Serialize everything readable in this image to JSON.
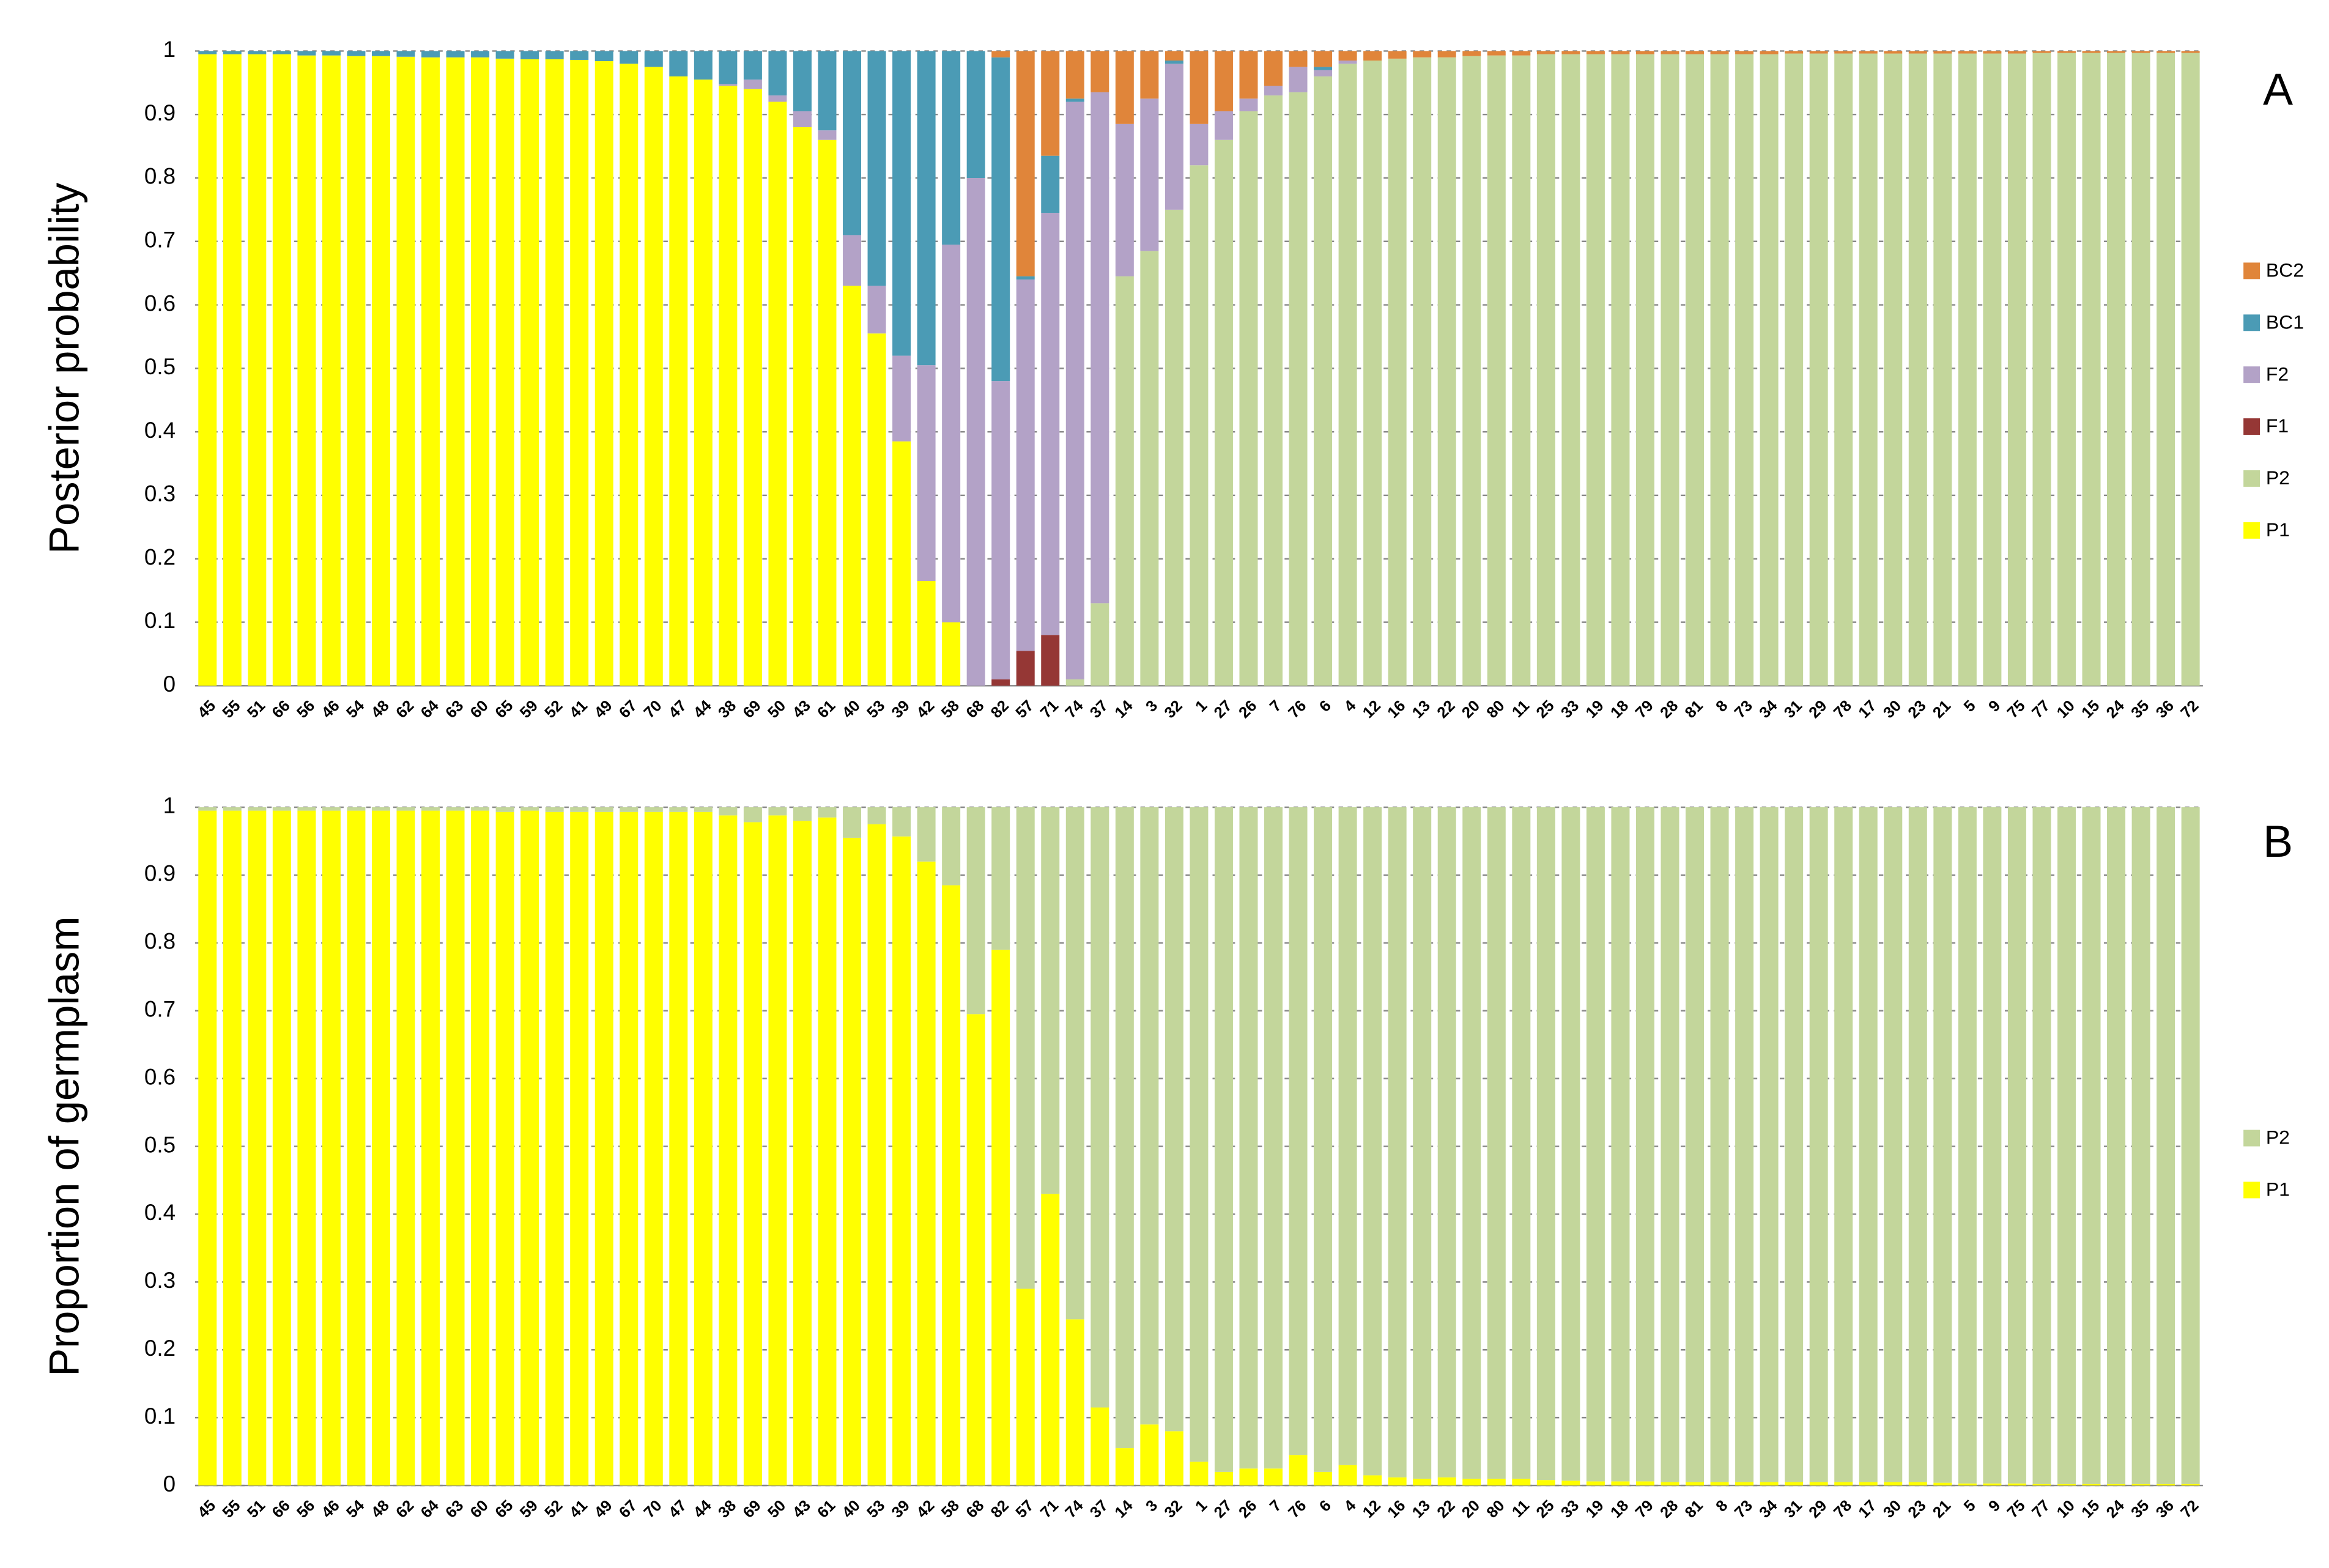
{
  "chart_data": [
    {
      "type": "stacked_bar",
      "ylabel": "Posterior probability",
      "panel_label": "A",
      "categories": [
        "45",
        "55",
        "51",
        "66",
        "56",
        "46",
        "54",
        "48",
        "62",
        "64",
        "63",
        "60",
        "65",
        "59",
        "52",
        "41",
        "49",
        "67",
        "70",
        "47",
        "44",
        "38",
        "69",
        "50",
        "43",
        "61",
        "40",
        "53",
        "39",
        "42",
        "58",
        "68",
        "82",
        "57",
        "71",
        "74",
        "37",
        "14",
        "3",
        "32",
        "1",
        "27",
        "26",
        "7",
        "76",
        "6",
        "4",
        "12",
        "16",
        "13",
        "22",
        "20",
        "80",
        "11",
        "25",
        "33",
        "19",
        "18",
        "79",
        "28",
        "81",
        "8",
        "73",
        "34",
        "31",
        "29",
        "78",
        "17",
        "30",
        "23",
        "21",
        "5",
        "9",
        "75",
        "77",
        "10",
        "15",
        "24",
        "35",
        "36",
        "72"
      ],
      "ylim": [
        0,
        1
      ],
      "yticks": [
        0,
        0.1,
        0.2,
        0.3,
        0.4,
        0.5,
        0.6,
        0.7,
        0.8,
        0.9,
        1
      ],
      "grid": true,
      "series": [
        {
          "name": "P1",
          "color": "#ffff00",
          "values": [
            0.995,
            0.995,
            0.995,
            0.995,
            0.993,
            0.993,
            0.992,
            0.992,
            0.991,
            0.99,
            0.99,
            0.99,
            0.988,
            0.987,
            0.987,
            0.986,
            0.984,
            0.98,
            0.975,
            0.96,
            0.955,
            0.945,
            0.94,
            0.92,
            0.88,
            0.86,
            0.63,
            0.555,
            0.385,
            0.165,
            0.1,
            0,
            0,
            0,
            0,
            0,
            0,
            0,
            0,
            0,
            0,
            0,
            0,
            0,
            0,
            0,
            0,
            0,
            0,
            0,
            0,
            0,
            0,
            0,
            0,
            0,
            0,
            0,
            0,
            0,
            0,
            0,
            0,
            0,
            0,
            0,
            0,
            0,
            0,
            0,
            0,
            0,
            0,
            0,
            0,
            0,
            0,
            0,
            0,
            0,
            0
          ]
        },
        {
          "name": "P2",
          "color": "#c3d69b",
          "values": [
            0,
            0,
            0,
            0,
            0,
            0,
            0,
            0,
            0,
            0,
            0,
            0,
            0,
            0,
            0,
            0,
            0,
            0,
            0,
            0,
            0,
            0,
            0,
            0,
            0,
            0,
            0,
            0,
            0,
            0,
            0,
            0,
            0,
            0,
            0,
            0.01,
            0.13,
            0.645,
            0.685,
            0.75,
            0.82,
            0.86,
            0.905,
            0.93,
            0.935,
            0.96,
            0.98,
            0.985,
            0.988,
            0.99,
            0.99,
            0.992,
            0.993,
            0.993,
            0.995,
            0.995,
            0.995,
            0.995,
            0.995,
            0.995,
            0.995,
            0.995,
            0.995,
            0.995,
            0.996,
            0.996,
            0.996,
            0.996,
            0.996,
            0.996,
            0.996,
            0.996,
            0.996,
            0.996,
            0.997,
            0.997,
            0.997,
            0.997,
            0.997,
            0.997,
            0.997
          ]
        },
        {
          "name": "F1",
          "color": "#953735",
          "values": [
            0,
            0,
            0,
            0,
            0,
            0,
            0,
            0,
            0,
            0,
            0,
            0,
            0,
            0,
            0,
            0,
            0,
            0,
            0,
            0,
            0,
            0,
            0,
            0,
            0,
            0,
            0,
            0,
            0,
            0,
            0,
            0,
            0.01,
            0.055,
            0.08,
            0,
            0,
            0,
            0,
            0,
            0,
            0,
            0,
            0,
            0,
            0,
            0,
            0,
            0,
            0,
            0,
            0,
            0,
            0,
            0,
            0,
            0,
            0,
            0,
            0,
            0,
            0,
            0,
            0,
            0,
            0,
            0,
            0,
            0,
            0,
            0,
            0,
            0,
            0,
            0,
            0,
            0,
            0,
            0,
            0,
            0
          ]
        },
        {
          "name": "F2",
          "color": "#b3a2c7",
          "values": [
            0,
            0,
            0,
            0,
            0,
            0,
            0,
            0,
            0,
            0,
            0,
            0,
            0,
            0,
            0,
            0,
            0,
            0,
            0,
            0,
            0,
            0.003,
            0.015,
            0.01,
            0.025,
            0.015,
            0.08,
            0.075,
            0.135,
            0.34,
            0.595,
            0.8,
            0.47,
            0.585,
            0.665,
            0.91,
            0.805,
            0.24,
            0.24,
            0.23,
            0.065,
            0.045,
            0.02,
            0.015,
            0.04,
            0.01,
            0.005,
            0,
            0,
            0,
            0,
            0,
            0,
            0,
            0,
            0,
            0,
            0,
            0,
            0,
            0,
            0,
            0,
            0,
            0,
            0,
            0,
            0,
            0,
            0,
            0,
            0,
            0,
            0,
            0,
            0,
            0,
            0,
            0,
            0,
            0
          ]
        },
        {
          "name": "BC1",
          "color": "#4b9bb5",
          "values": [
            0.005,
            0.005,
            0.005,
            0.005,
            0.007,
            0.007,
            0.008,
            0.008,
            0.009,
            0.01,
            0.01,
            0.01,
            0.012,
            0.013,
            0.013,
            0.014,
            0.016,
            0.02,
            0.025,
            0.04,
            0.045,
            0.052,
            0.045,
            0.07,
            0.095,
            0.125,
            0.29,
            0.37,
            0.48,
            0.495,
            0.305,
            0.2,
            0.51,
            0.005,
            0.09,
            0.005,
            0,
            0,
            0,
            0.005,
            0,
            0,
            0,
            0,
            0,
            0.005,
            0,
            0,
            0,
            0,
            0,
            0,
            0,
            0,
            0,
            0,
            0,
            0,
            0,
            0,
            0,
            0,
            0,
            0,
            0,
            0,
            0,
            0,
            0,
            0,
            0,
            0,
            0,
            0,
            0,
            0,
            0,
            0,
            0,
            0,
            0
          ]
        },
        {
          "name": "BC2",
          "color": "#e0853a",
          "values": [
            0,
            0,
            0,
            0,
            0,
            0,
            0,
            0,
            0,
            0,
            0,
            0,
            0,
            0,
            0,
            0,
            0,
            0,
            0,
            0,
            0,
            0,
            0,
            0,
            0,
            0,
            0,
            0,
            0,
            0,
            0,
            0,
            0.01,
            0.355,
            0.165,
            0.075,
            0.065,
            0.115,
            0.075,
            0.015,
            0.115,
            0.095,
            0.075,
            0.055,
            0.025,
            0.025,
            0.015,
            0.015,
            0.012,
            0.01,
            0.01,
            0.008,
            0.007,
            0.007,
            0.005,
            0.005,
            0.005,
            0.005,
            0.005,
            0.005,
            0.005,
            0.005,
            0.005,
            0.005,
            0.004,
            0.004,
            0.004,
            0.004,
            0.004,
            0.004,
            0.004,
            0.004,
            0.004,
            0.004,
            0.003,
            0.003,
            0.003,
            0.003,
            0.003,
            0.003,
            0.003
          ]
        }
      ]
    },
    {
      "type": "stacked_bar",
      "ylabel": "Proportion of germplasm",
      "panel_label": "B",
      "categories": [
        "45",
        "55",
        "51",
        "66",
        "56",
        "46",
        "54",
        "48",
        "62",
        "64",
        "63",
        "60",
        "65",
        "59",
        "52",
        "41",
        "49",
        "67",
        "70",
        "47",
        "44",
        "38",
        "69",
        "50",
        "43",
        "61",
        "40",
        "53",
        "39",
        "42",
        "58",
        "68",
        "82",
        "57",
        "71",
        "74",
        "37",
        "14",
        "3",
        "32",
        "1",
        "27",
        "26",
        "7",
        "76",
        "6",
        "4",
        "12",
        "16",
        "13",
        "22",
        "20",
        "80",
        "11",
        "25",
        "33",
        "19",
        "18",
        "79",
        "28",
        "81",
        "8",
        "73",
        "34",
        "31",
        "29",
        "78",
        "17",
        "30",
        "23",
        "21",
        "5",
        "9",
        "75",
        "77",
        "10",
        "15",
        "24",
        "35",
        "36",
        "72"
      ],
      "ylim": [
        0,
        1
      ],
      "yticks": [
        0,
        0.1,
        0.2,
        0.3,
        0.4,
        0.5,
        0.6,
        0.7,
        0.8,
        0.9,
        1
      ],
      "grid": true,
      "series": [
        {
          "name": "P1",
          "color": "#ffff00",
          "values": [
            0.995,
            0.995,
            0.995,
            0.995,
            0.995,
            0.995,
            0.995,
            0.995,
            0.995,
            0.995,
            0.995,
            0.995,
            0.993,
            0.995,
            0.993,
            0.993,
            0.993,
            0.993,
            0.993,
            0.993,
            0.993,
            0.988,
            0.978,
            0.988,
            0.98,
            0.985,
            0.955,
            0.975,
            0.957,
            0.92,
            0.885,
            0.695,
            0.79,
            0.29,
            0.43,
            0.245,
            0.115,
            0.055,
            0.09,
            0.08,
            0.035,
            0.02,
            0.025,
            0.025,
            0.045,
            0.02,
            0.03,
            0.015,
            0.012,
            0.01,
            0.012,
            0.01,
            0.01,
            0.01,
            0.008,
            0.007,
            0.006,
            0.006,
            0.006,
            0.005,
            0.005,
            0.005,
            0.005,
            0.005,
            0.005,
            0.005,
            0.005,
            0.005,
            0.005,
            0.005,
            0.004,
            0.003,
            0.003,
            0.003,
            0.002,
            0.002,
            0.002,
            0.002,
            0.002,
            0.002,
            0.002
          ]
        },
        {
          "name": "P2",
          "color": "#c3d69b",
          "values": [
            0.005,
            0.005,
            0.005,
            0.005,
            0.005,
            0.005,
            0.005,
            0.005,
            0.005,
            0.005,
            0.005,
            0.005,
            0.007,
            0.005,
            0.007,
            0.007,
            0.007,
            0.007,
            0.007,
            0.007,
            0.007,
            0.012,
            0.022,
            0.012,
            0.02,
            0.015,
            0.045,
            0.025,
            0.043,
            0.08,
            0.115,
            0.305,
            0.21,
            0.71,
            0.57,
            0.755,
            0.885,
            0.945,
            0.91,
            0.92,
            0.965,
            0.98,
            0.975,
            0.975,
            0.955,
            0.98,
            0.97,
            0.985,
            0.988,
            0.99,
            0.988,
            0.99,
            0.99,
            0.99,
            0.992,
            0.993,
            0.994,
            0.994,
            0.994,
            0.995,
            0.995,
            0.995,
            0.995,
            0.995,
            0.995,
            0.995,
            0.995,
            0.995,
            0.995,
            0.995,
            0.996,
            0.997,
            0.997,
            0.997,
            0.998,
            0.998,
            0.998,
            0.998,
            0.998,
            0.998,
            0.998
          ]
        }
      ]
    }
  ]
}
